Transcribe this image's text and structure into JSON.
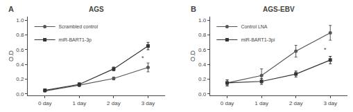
{
  "chart_data": [
    {
      "type": "line",
      "title": "AGS",
      "ylabel": "O.D",
      "annotations": [
        {
          "text": "A"
        },
        {
          "text": "*",
          "x": 2.85,
          "y": 0.42
        }
      ],
      "x": [
        0,
        1,
        2,
        3
      ],
      "xlim": [
        -0.5,
        3.5
      ],
      "xticks": [
        {
          "value": 0,
          "label": "0 day"
        },
        {
          "value": 1,
          "label": "1 day"
        },
        {
          "value": 2,
          "label": "2 day"
        },
        {
          "value": 3,
          "label": "3 day"
        }
      ],
      "ylim": [
        -0.02,
        1.05
      ],
      "yticks": [
        {
          "value": 0,
          "label": "0.0"
        },
        0.2,
        0.4,
        0.6,
        0.8,
        {
          "value": 1,
          "label": "1.0"
        }
      ],
      "grid": false,
      "legend": "upper left",
      "series": [
        {
          "name": "Scrambled control",
          "color": "#555555",
          "marker": "circle",
          "values": [
            0.04,
            0.12,
            0.21,
            0.36
          ],
          "yerr": [
            0.005,
            0.02,
            0.02,
            0.06
          ]
        },
        {
          "name": "miR-BART1-3p",
          "color": "#333333",
          "marker": "square",
          "values": [
            0.05,
            0.13,
            0.34,
            0.65
          ],
          "yerr": [
            0.005,
            0.02,
            0.025,
            0.05
          ]
        }
      ]
    },
    {
      "type": "line",
      "title": "AGS-EBV",
      "ylabel": "O.D",
      "annotations": [
        {
          "text": "B"
        },
        {
          "text": "*",
          "x": 2.85,
          "y": 0.53
        }
      ],
      "x": [
        0,
        1,
        2,
        3
      ],
      "xlim": [
        -0.5,
        3.5
      ],
      "xticks": [
        {
          "value": 0,
          "label": "0 day"
        },
        {
          "value": 1,
          "label": "1 day"
        },
        {
          "value": 2,
          "label": "2 day"
        },
        {
          "value": 3,
          "label": "3 day"
        }
      ],
      "ylim": [
        -0.02,
        1.05
      ],
      "yticks": [
        {
          "value": 0,
          "label": "0.0"
        },
        0.2,
        0.4,
        0.6,
        0.8,
        {
          "value": 1,
          "label": "1.0"
        }
      ],
      "grid": false,
      "legend": "upper left",
      "series": [
        {
          "name": "Control LNA",
          "color": "#555555",
          "marker": "circle",
          "values": [
            0.15,
            0.25,
            0.58,
            0.83
          ],
          "yerr": [
            0.04,
            0.09,
            0.08,
            0.1
          ]
        },
        {
          "name": "miR-BART1-3pi",
          "color": "#333333",
          "marker": "square",
          "values": [
            0.15,
            0.17,
            0.27,
            0.46
          ],
          "yerr": [
            0.04,
            0.04,
            0.04,
            0.05
          ]
        }
      ]
    }
  ]
}
